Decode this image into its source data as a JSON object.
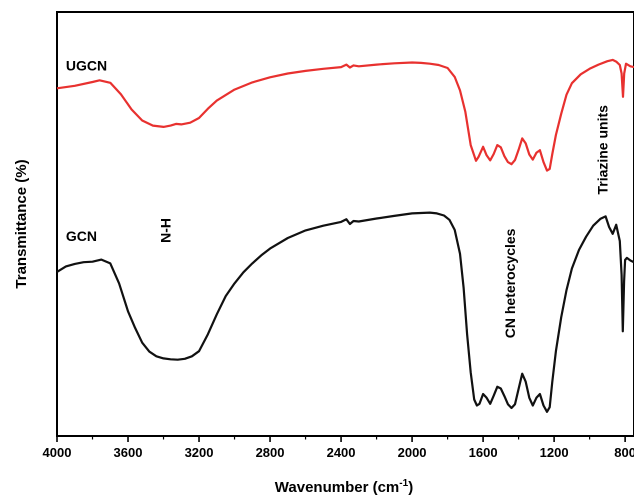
{
  "chart_data": {
    "type": "line",
    "xlabel": "Wavenumber (cm",
    "xlabel_sup": "-1",
    "xlabel_end": ")",
    "ylabel": "Transmittance (%)",
    "xlim": [
      4000,
      750
    ],
    "x_reversed": true,
    "ylim": [
      0,
      100
    ],
    "y_ticks_shown": false,
    "grid": false,
    "x_ticks": [
      4000,
      3600,
      3200,
      2800,
      2400,
      2000,
      1600,
      1200,
      800
    ],
    "x_tick_labels": [
      "4000",
      "3600",
      "3200",
      "2800",
      "2400",
      "2000",
      "1600",
      "1200",
      "800"
    ],
    "series": [
      {
        "name": "UGCN",
        "color": "#e8312f",
        "points": [
          [
            4000,
            82.0
          ],
          [
            3900,
            82.6
          ],
          [
            3800,
            83.5
          ],
          [
            3760,
            83.9
          ],
          [
            3700,
            83.3
          ],
          [
            3640,
            80.6
          ],
          [
            3580,
            77.0
          ],
          [
            3520,
            74.4
          ],
          [
            3460,
            73.2
          ],
          [
            3400,
            72.9
          ],
          [
            3360,
            73.2
          ],
          [
            3330,
            73.6
          ],
          [
            3300,
            73.5
          ],
          [
            3250,
            73.9
          ],
          [
            3200,
            75.0
          ],
          [
            3150,
            77.2
          ],
          [
            3100,
            79.1
          ],
          [
            3000,
            81.7
          ],
          [
            2900,
            83.4
          ],
          [
            2800,
            84.6
          ],
          [
            2700,
            85.5
          ],
          [
            2600,
            86.1
          ],
          [
            2500,
            86.6
          ],
          [
            2400,
            87.0
          ],
          [
            2370,
            87.6
          ],
          [
            2350,
            86.9
          ],
          [
            2330,
            87.4
          ],
          [
            2300,
            87.2
          ],
          [
            2200,
            87.6
          ],
          [
            2100,
            87.9
          ],
          [
            2000,
            88.1
          ],
          [
            1950,
            88.0
          ],
          [
            1900,
            87.8
          ],
          [
            1850,
            87.5
          ],
          [
            1800,
            86.8
          ],
          [
            1760,
            84.7
          ],
          [
            1730,
            81.5
          ],
          [
            1700,
            76.5
          ],
          [
            1670,
            68.6
          ],
          [
            1640,
            64.9
          ],
          [
            1625,
            65.9
          ],
          [
            1600,
            68.2
          ],
          [
            1580,
            66.2
          ],
          [
            1560,
            65.0
          ],
          [
            1540,
            66.5
          ],
          [
            1520,
            68.6
          ],
          [
            1500,
            68.1
          ],
          [
            1480,
            66.0
          ],
          [
            1460,
            64.6
          ],
          [
            1440,
            64.1
          ],
          [
            1420,
            65.1
          ],
          [
            1400,
            67.5
          ],
          [
            1380,
            70.2
          ],
          [
            1360,
            69.0
          ],
          [
            1340,
            66.4
          ],
          [
            1320,
            65.2
          ],
          [
            1300,
            66.8
          ],
          [
            1280,
            67.4
          ],
          [
            1260,
            64.6
          ],
          [
            1240,
            62.6
          ],
          [
            1225,
            63.0
          ],
          [
            1210,
            66.5
          ],
          [
            1190,
            71.0
          ],
          [
            1160,
            76.0
          ],
          [
            1130,
            80.5
          ],
          [
            1100,
            83.2
          ],
          [
            1050,
            85.3
          ],
          [
            1000,
            86.6
          ],
          [
            950,
            87.6
          ],
          [
            900,
            88.4
          ],
          [
            870,
            88.7
          ],
          [
            850,
            88.3
          ],
          [
            830,
            87.5
          ],
          [
            820,
            85.5
          ],
          [
            812,
            80.0
          ],
          [
            805,
            85.5
          ],
          [
            795,
            87.8
          ],
          [
            770,
            87.2
          ],
          [
            750,
            87.0
          ]
        ]
      },
      {
        "name": "GCN",
        "color": "#111111",
        "points": [
          [
            4000,
            38.7
          ],
          [
            3950,
            40.0
          ],
          [
            3900,
            40.6
          ],
          [
            3850,
            41.0
          ],
          [
            3800,
            41.1
          ],
          [
            3750,
            41.6
          ],
          [
            3700,
            40.7
          ],
          [
            3650,
            36.0
          ],
          [
            3600,
            29.4
          ],
          [
            3560,
            25.5
          ],
          [
            3520,
            22.0
          ],
          [
            3480,
            19.9
          ],
          [
            3440,
            18.8
          ],
          [
            3400,
            18.3
          ],
          [
            3360,
            18.1
          ],
          [
            3320,
            18.0
          ],
          [
            3280,
            18.2
          ],
          [
            3240,
            18.8
          ],
          [
            3200,
            20.0
          ],
          [
            3150,
            24.0
          ],
          [
            3100,
            28.7
          ],
          [
            3050,
            33.0
          ],
          [
            3000,
            36.0
          ],
          [
            2950,
            38.6
          ],
          [
            2900,
            40.7
          ],
          [
            2850,
            42.6
          ],
          [
            2800,
            44.2
          ],
          [
            2700,
            46.7
          ],
          [
            2600,
            48.5
          ],
          [
            2500,
            49.6
          ],
          [
            2400,
            50.5
          ],
          [
            2370,
            51.1
          ],
          [
            2350,
            50.0
          ],
          [
            2330,
            50.7
          ],
          [
            2300,
            50.6
          ],
          [
            2200,
            51.3
          ],
          [
            2100,
            51.9
          ],
          [
            2000,
            52.5
          ],
          [
            1950,
            52.6
          ],
          [
            1900,
            52.7
          ],
          [
            1860,
            52.5
          ],
          [
            1820,
            52.0
          ],
          [
            1790,
            51.0
          ],
          [
            1760,
            48.6
          ],
          [
            1730,
            43.0
          ],
          [
            1710,
            35.0
          ],
          [
            1690,
            24.0
          ],
          [
            1670,
            15.0
          ],
          [
            1650,
            8.6
          ],
          [
            1635,
            7.2
          ],
          [
            1620,
            7.6
          ],
          [
            1600,
            9.9
          ],
          [
            1580,
            9.0
          ],
          [
            1560,
            7.6
          ],
          [
            1540,
            9.5
          ],
          [
            1520,
            11.6
          ],
          [
            1500,
            11.2
          ],
          [
            1480,
            9.4
          ],
          [
            1460,
            7.5
          ],
          [
            1440,
            6.6
          ],
          [
            1420,
            7.5
          ],
          [
            1400,
            11.1
          ],
          [
            1380,
            14.7
          ],
          [
            1360,
            12.8
          ],
          [
            1340,
            9.0
          ],
          [
            1320,
            7.2
          ],
          [
            1300,
            9.0
          ],
          [
            1280,
            9.9
          ],
          [
            1260,
            7.2
          ],
          [
            1240,
            5.7
          ],
          [
            1225,
            6.8
          ],
          [
            1210,
            12.8
          ],
          [
            1190,
            20.0
          ],
          [
            1160,
            28.0
          ],
          [
            1130,
            34.4
          ],
          [
            1100,
            39.5
          ],
          [
            1060,
            43.9
          ],
          [
            1020,
            47.0
          ],
          [
            980,
            49.6
          ],
          [
            940,
            51.2
          ],
          [
            910,
            51.8
          ],
          [
            890,
            49.3
          ],
          [
            870,
            47.7
          ],
          [
            850,
            49.8
          ],
          [
            830,
            46.0
          ],
          [
            820,
            38.0
          ],
          [
            813,
            24.7
          ],
          [
            806,
            36.5
          ],
          [
            800,
            41.5
          ],
          [
            790,
            42.0
          ],
          [
            770,
            41.4
          ],
          [
            750,
            41.0
          ]
        ]
      }
    ],
    "annotations": [
      {
        "text": "UGCN",
        "x": 3950,
        "y": 86.2,
        "rotate": 0,
        "anchor": "start"
      },
      {
        "text": "GCN",
        "x": 3950,
        "y": 46.0,
        "rotate": 0,
        "anchor": "start"
      },
      {
        "text": "N-H",
        "x": 3360,
        "y": 48.5,
        "rotate": -90,
        "anchor": "middle"
      },
      {
        "text": "CN heterocycles",
        "x": 1420,
        "y": 36.0,
        "rotate": -90,
        "anchor": "middle"
      },
      {
        "text": "Triazine units",
        "x": 900,
        "y": 67.5,
        "rotate": -90,
        "anchor": "middle"
      }
    ]
  }
}
